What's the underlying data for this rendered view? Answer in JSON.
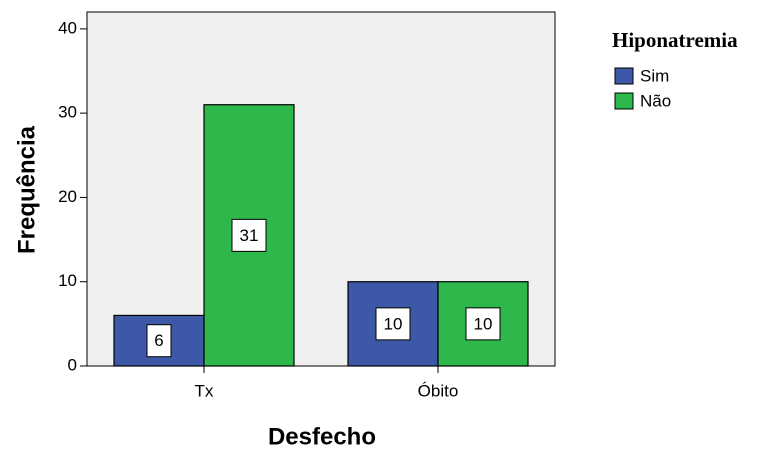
{
  "chart_data": {
    "type": "bar",
    "xlabel": "Desfecho",
    "ylabel": "Frequência",
    "legend_title": "Hiponatremia",
    "categories": [
      "Tx",
      "Óbito"
    ],
    "series": [
      {
        "name": "Sim",
        "color": "#3e58a8",
        "values": [
          6,
          10
        ]
      },
      {
        "name": "Não",
        "color": "#2eb84b",
        "values": [
          31,
          10
        ]
      }
    ],
    "ylim": [
      0,
      42
    ],
    "yticks": [
      0,
      10,
      20,
      30,
      40
    ],
    "legend": "right",
    "grid": false
  }
}
